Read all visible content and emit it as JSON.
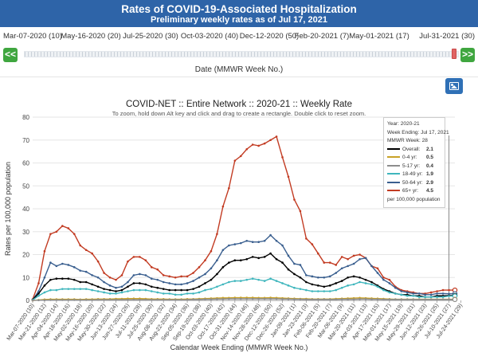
{
  "header": {
    "title": "Rates of COVID-19-Associated Hospitalization",
    "subtitle": "Preliminary weekly rates as of Jul 17, 2021"
  },
  "timeline": {
    "labels": [
      "Mar-07-2020 (10)",
      "May-16-2020 (20)",
      "Jul-25-2020 (30)",
      "Oct-03-2020 (40)",
      "Dec-12-2020 (50)",
      "Feb-20-2021 (7)",
      "May-01-2021 (17)",
      "Jul-31-2021 (30)"
    ],
    "prev_label": "<<",
    "next_label": ">>",
    "axis_label": "Date (MMWR Week No.)"
  },
  "toolbar": {
    "image_icon": "image-icon"
  },
  "tooltip": {
    "year": "Year: 2020-21",
    "week_ending": "Week Ending: Jul 17, 2021",
    "mmwr_week": "MMWR Week: 28",
    "rows": [
      {
        "label": "Overall:",
        "value": "2.1",
        "color": "#000000"
      },
      {
        "label": "0-4 yr:",
        "value": "0.5",
        "color": "#c9a227"
      },
      {
        "label": "5-17 yr:",
        "value": "0.4",
        "color": "#8d8d8d"
      },
      {
        "label": "18-49 yr:",
        "value": "1.9",
        "color": "#3fb6bd"
      },
      {
        "label": "50-64 yr:",
        "value": "2.9",
        "color": "#3a5f8f"
      },
      {
        "label": "65+ yr:",
        "value": "4.5",
        "color": "#c23b22"
      }
    ],
    "footnote": "per 100,000 population"
  },
  "chart_data": {
    "type": "line",
    "title": "COVID-NET :: Entire Network :: 2020-21 :: Weekly Rate",
    "subtitle": "To zoom, hold down Alt key and click and drag to create a rectangle. Double click to reset zoom.",
    "xlabel": "Calendar Week Ending (MMWR Week No.)",
    "ylabel": "Rates per 100,000 population",
    "ylim": [
      0,
      80
    ],
    "yticks": [
      0,
      10,
      20,
      30,
      40,
      50,
      60,
      70,
      80
    ],
    "grid": true,
    "x_tick_labels": [
      "Mar-07-2020 (10)",
      "Mar-21-2020 (12)",
      "Apr-04-2020 (14)",
      "Apr-18-2020 (16)",
      "May-02-2020 (18)",
      "May-16-2020 (20)",
      "May-30-2020 (22)",
      "Jun-13-2020 (24)",
      "Jun-27-2020 (26)",
      "Jul-11-2020 (28)",
      "Jul-25-2020 (30)",
      "Aug-08-2020 (32)",
      "Aug-22-2020 (34)",
      "Sep-05-2020 (36)",
      "Sep-19-2020 (38)",
      "Oct-03-2020 (40)",
      "Oct-17-2020 (42)",
      "Oct-31-2020 (44)",
      "Nov-14-2020 (46)",
      "Nov-28-2020 (48)",
      "Dec-12-2020 (50)",
      "Dec-26-2020 (52)",
      "Jan-09-2021 (1)",
      "Jan-23-2021 (3)",
      "Feb-06-2021 (5)",
      "Feb-20-2021 (7)",
      "Mar-06-2021 (9)",
      "Mar-20-2021 (11)",
      "Apr-03-2021 (13)",
      "Apr-17-2021 (15)",
      "May-01-2021 (17)",
      "May-15-2021 (19)",
      "May-29-2021 (21)",
      "Jun-12-2021 (23)",
      "Jun-26-2021 (25)",
      "Jul-10-2021 (27)",
      "Jul-24-2021 (29)"
    ],
    "x": [
      10,
      11,
      12,
      13,
      14,
      15,
      16,
      17,
      18,
      19,
      20,
      21,
      22,
      23,
      24,
      25,
      26,
      27,
      28,
      29,
      30,
      31,
      32,
      33,
      34,
      35,
      36,
      37,
      38,
      39,
      40,
      41,
      42,
      43,
      44,
      45,
      46,
      47,
      48,
      49,
      50,
      51,
      52,
      53,
      54,
      55,
      56,
      57,
      58,
      59,
      60,
      61,
      62,
      63,
      64,
      65,
      66,
      67,
      68,
      69,
      70,
      71,
      72,
      73,
      74,
      75,
      76,
      77,
      78,
      79,
      80,
      81
    ],
    "series": [
      {
        "name": "65+ yr",
        "color": "#c23b22",
        "values": [
          0.5,
          7.5,
          21.5,
          29,
          30,
          32.5,
          31.5,
          29,
          24,
          22,
          20.5,
          17,
          12,
          10,
          9,
          11,
          17,
          19,
          19,
          17.5,
          14.5,
          13.5,
          11,
          10.5,
          10,
          10.5,
          10.5,
          12,
          14.5,
          17.5,
          21.5,
          29,
          41,
          49,
          61,
          63,
          66,
          68,
          67.5,
          68.5,
          70,
          71.5,
          62.5,
          54,
          44,
          39,
          27,
          24.5,
          20.5,
          16.5,
          16.5,
          15.5,
          19,
          18,
          19.5,
          20,
          18.5,
          15,
          14,
          10,
          9,
          6,
          4.5,
          4,
          3.5,
          3,
          3,
          3.5,
          4,
          4.5,
          4.5,
          4.5
        ]
      },
      {
        "name": "50-64 yr",
        "color": "#3a5f8f",
        "values": [
          0.3,
          4,
          10,
          16.5,
          15,
          16,
          15.5,
          14.5,
          13,
          12.5,
          11,
          10,
          8,
          6.5,
          5.5,
          6,
          8,
          11,
          11.5,
          11,
          9.5,
          9,
          8,
          7.5,
          7,
          7,
          7.5,
          8.5,
          10,
          11.5,
          14,
          17.5,
          22,
          24,
          24.5,
          25,
          26,
          25.5,
          25.5,
          26,
          28.5,
          26,
          24,
          19.5,
          16,
          15.5,
          11,
          10.5,
          10,
          10,
          10.5,
          12,
          14,
          15,
          16,
          18,
          18.5,
          15,
          12,
          9,
          7.5,
          5.5,
          4,
          3.5,
          3,
          3,
          2.5,
          2.5,
          3,
          3,
          2.9,
          2.9
        ]
      },
      {
        "name": "Overall",
        "color": "#000000",
        "values": [
          0.3,
          3,
          6.5,
          9,
          9.5,
          9.5,
          9.5,
          9,
          8,
          8,
          7,
          6,
          5,
          4.5,
          4,
          4.5,
          6,
          7.5,
          7.5,
          7,
          6,
          5.5,
          5,
          4.5,
          4.5,
          4.5,
          4.5,
          5,
          6,
          7.5,
          9,
          11.5,
          14.5,
          16.5,
          17.5,
          17.5,
          18,
          19,
          18.5,
          19,
          20.5,
          18,
          16.5,
          13.5,
          11.5,
          10,
          8,
          7,
          6.5,
          6,
          6.5,
          7.5,
          8.5,
          10,
          10.5,
          10,
          9,
          8,
          6.5,
          5,
          4,
          3,
          2.5,
          2.5,
          2,
          2,
          1.5,
          1.5,
          2,
          2,
          2.1,
          2.1
        ]
      },
      {
        "name": "18-49 yr",
        "color": "#3fb6bd",
        "values": [
          0.2,
          2,
          3.5,
          4.5,
          4.5,
          5,
          5,
          5,
          5,
          5,
          4.5,
          4,
          3.5,
          3,
          3,
          3.5,
          4,
          4.5,
          4.5,
          4.5,
          4,
          3.5,
          3,
          3,
          2.5,
          2.5,
          3,
          3,
          3.5,
          4.5,
          5,
          6,
          7,
          8,
          8.5,
          8.5,
          9,
          9.5,
          9,
          8.5,
          9.5,
          8.5,
          7.5,
          6.5,
          5.5,
          5,
          4.5,
          4,
          4,
          4,
          4,
          4.5,
          5.5,
          6.5,
          7,
          8,
          7.5,
          7,
          6,
          4.5,
          3.5,
          3,
          2.5,
          2,
          2,
          1.5,
          1.5,
          1.5,
          1.5,
          1.5,
          1.9,
          1.9
        ]
      },
      {
        "name": "0-4 yr",
        "color": "#c9a227",
        "values": [
          0,
          0.2,
          0.4,
          0.5,
          0.5,
          0.5,
          0.5,
          0.5,
          0.4,
          0.5,
          0.5,
          0.6,
          0.6,
          0.6,
          0.7,
          0.7,
          0.8,
          0.8,
          0.8,
          0.7,
          0.6,
          0.6,
          0.6,
          0.5,
          0.5,
          0.5,
          0.6,
          0.6,
          0.7,
          0.8,
          0.9,
          1,
          1.1,
          1.1,
          1.2,
          1.2,
          1.2,
          1.2,
          1.1,
          1.1,
          1.2,
          1.1,
          1,
          0.9,
          0.8,
          0.7,
          0.7,
          0.6,
          0.6,
          0.6,
          0.6,
          0.7,
          0.8,
          0.9,
          1,
          1.1,
          1,
          0.9,
          0.8,
          0.7,
          0.6,
          0.5,
          0.5,
          0.5,
          0.5,
          0.5,
          0.5,
          0.5,
          0.5,
          0.5,
          0.5,
          0.5
        ]
      },
      {
        "name": "5-17 yr",
        "color": "#8d8d8d",
        "values": [
          0,
          0.1,
          0.1,
          0.2,
          0.2,
          0.2,
          0.2,
          0.2,
          0.2,
          0.2,
          0.2,
          0.3,
          0.3,
          0.3,
          0.3,
          0.3,
          0.3,
          0.3,
          0.3,
          0.3,
          0.3,
          0.3,
          0.3,
          0.3,
          0.3,
          0.3,
          0.3,
          0.4,
          0.4,
          0.5,
          0.5,
          0.6,
          0.6,
          0.7,
          0.7,
          0.7,
          0.7,
          0.7,
          0.7,
          0.7,
          0.7,
          0.7,
          0.6,
          0.6,
          0.5,
          0.5,
          0.4,
          0.4,
          0.4,
          0.4,
          0.4,
          0.4,
          0.5,
          0.5,
          0.5,
          0.6,
          0.6,
          0.5,
          0.5,
          0.4,
          0.4,
          0.4,
          0.4,
          0.4,
          0.4,
          0.4,
          0.4,
          0.4,
          0.4,
          0.4,
          0.4,
          0.4
        ]
      }
    ]
  }
}
